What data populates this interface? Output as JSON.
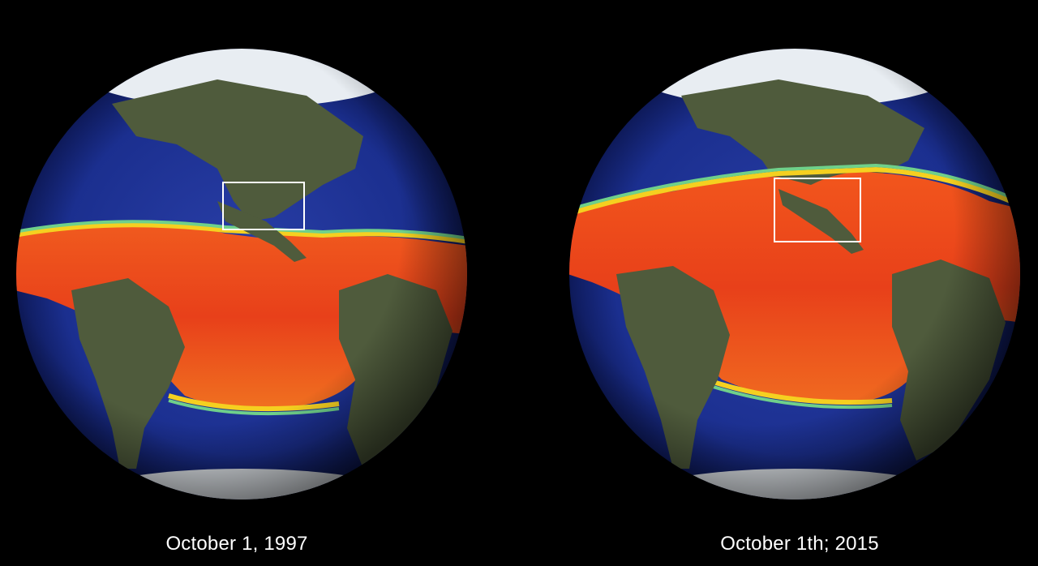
{
  "captions": {
    "left": "October 1, 1997",
    "right": "October 1th; 2015"
  },
  "colors": {
    "background": "#000000",
    "deep_ocean": "#1b2f8f",
    "warm_water": "#e8401a",
    "land": "#4f5b3c",
    "ice": "#e8edf2",
    "highlight_box": "#ffffff"
  },
  "images": {
    "left": "globe-icon",
    "right": "globe-icon"
  }
}
